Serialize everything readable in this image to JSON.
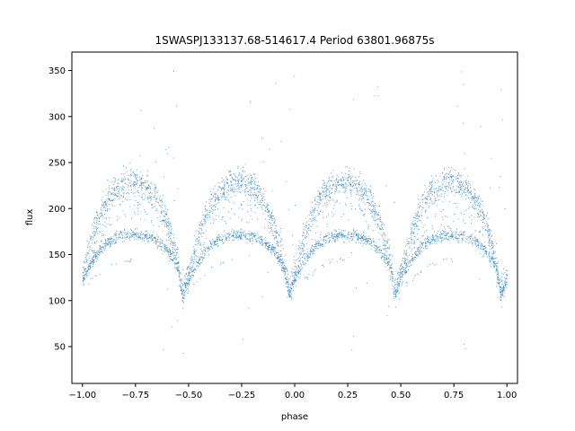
{
  "chart_data": {
    "type": "scatter",
    "title": "1SWASPJ133137.68-514617.4 Period 63801.96875s",
    "xlabel": "phase",
    "ylabel": "flux",
    "xlim": [
      -1.05,
      1.05
    ],
    "ylim": [
      10,
      370
    ],
    "xticks": [
      -1.0,
      -0.75,
      -0.5,
      -0.25,
      0.0,
      0.25,
      0.5,
      0.75,
      1.0
    ],
    "xtick_labels": [
      "−1.00",
      "−0.75",
      "−0.50",
      "−0.25",
      "0.00",
      "0.25",
      "0.50",
      "0.75",
      "1.00"
    ],
    "yticks": [
      50,
      100,
      150,
      200,
      250,
      300,
      350
    ],
    "ytick_labels": [
      "50",
      "100",
      "150",
      "200",
      "250",
      "300",
      "350"
    ],
    "grid": false,
    "legend": "none",
    "marker_color": "#1f77b4",
    "series": [
      {
        "description": "phase-folded light curve, repeated over two cycles (-1 to 1)",
        "upper_band": {
          "phase": [
            0.0,
            0.05,
            0.1,
            0.15,
            0.2,
            0.25,
            0.3,
            0.35,
            0.4,
            0.45,
            0.47,
            0.5
          ],
          "flux": [
            130,
            175,
            205,
            220,
            228,
            230,
            225,
            210,
            185,
            140,
            110,
            130
          ]
        },
        "lower_band": {
          "phase": [
            0.0,
            0.05,
            0.1,
            0.15,
            0.2,
            0.25,
            0.3,
            0.35,
            0.4,
            0.45,
            0.47,
            0.5
          ],
          "flux": [
            125,
            145,
            160,
            168,
            172,
            172,
            170,
            165,
            155,
            135,
            105,
            125
          ]
        },
        "faint_track": {
          "phase": [
            0.02,
            0.08,
            0.12,
            0.18,
            0.22
          ],
          "flux": [
            118,
            130,
            138,
            143,
            145
          ]
        }
      }
    ]
  }
}
